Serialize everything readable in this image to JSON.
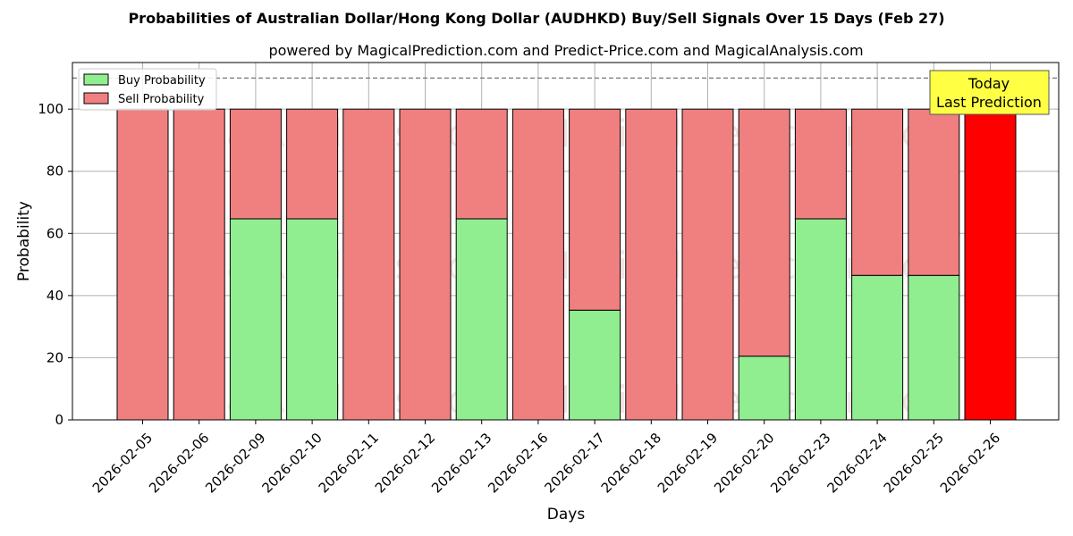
{
  "chart_data": {
    "type": "bar",
    "stacked": true,
    "title": "Probabilities of Australian Dollar/Hong Kong Dollar (AUDHKD) Buy/Sell Signals Over 15 Days (Feb 27)",
    "subtitle": "powered by MagicalPrediction.com and Predict-Price.com and MagicalAnalysis.com",
    "xlabel": "Days",
    "ylabel": "Probability",
    "ylim": [
      0,
      115
    ],
    "yticks": [
      0,
      20,
      40,
      60,
      80,
      100
    ],
    "grid": true,
    "legend_position": "top-left",
    "categories": [
      "2026-02-05",
      "2026-02-06",
      "2026-02-09",
      "2026-02-10",
      "2026-02-11",
      "2026-02-12",
      "2026-02-13",
      "2026-02-16",
      "2026-02-17",
      "2026-02-18",
      "2026-02-19",
      "2026-02-20",
      "2026-02-23",
      "2026-02-24",
      "2026-02-25",
      "2026-02-26"
    ],
    "series": [
      {
        "name": "Buy Probability",
        "color": "#90ee90",
        "values": [
          0,
          0,
          64.7,
          64.7,
          0,
          0,
          64.7,
          0,
          35.3,
          0,
          0,
          20.5,
          64.7,
          46.5,
          46.5,
          0
        ]
      },
      {
        "name": "Sell Probability",
        "color": "#f08080",
        "values": [
          100,
          100,
          35.3,
          35.3,
          100,
          100,
          35.3,
          100,
          64.7,
          100,
          100,
          79.5,
          35.3,
          53.5,
          53.5,
          100
        ]
      }
    ],
    "highlight": {
      "category": "2026-02-26",
      "color": "#ff0000",
      "value": 100
    },
    "reference_line": {
      "y": 110,
      "style": "dashed"
    },
    "annotation": {
      "line1": "Today",
      "line2": "Last Prediction",
      "color": "#ffff44"
    },
    "watermarks": [
      "MagicalAnalysis.com",
      "MagicalPrediction.com"
    ]
  }
}
